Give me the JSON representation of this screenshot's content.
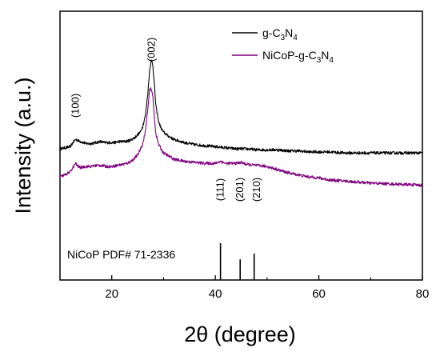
{
  "chart_data": {
    "type": "line",
    "title": "",
    "xlabel": "2θ (degree)",
    "ylabel": "Intensity (a.u.)",
    "xlim": [
      10,
      80
    ],
    "xticks": [
      "20",
      "40",
      "60",
      "80"
    ],
    "grid": false,
    "legend_position": "top-right",
    "legend": [
      {
        "name": "g-C",
        "sub1": "3",
        "mid": "N",
        "sub2": "4",
        "color": "#000000"
      },
      {
        "name": "NiCoP-g-C",
        "sub1": "3",
        "mid": "N",
        "sub2": "4",
        "color": "#800080"
      }
    ],
    "series": [
      {
        "name": "g-C3N4",
        "color": "#000000",
        "x": [
          10,
          11,
          12,
          12.5,
          13,
          13.5,
          14,
          15,
          16,
          17,
          17.7,
          18.5,
          19.5,
          20.5,
          21.5,
          22.5,
          23.5,
          24.5,
          25.5,
          26,
          26.5,
          27,
          27.3,
          27.6,
          27.9,
          28.2,
          28.5,
          29,
          29.5,
          30,
          31,
          32,
          34,
          36,
          38,
          40,
          42,
          44,
          46,
          48,
          50,
          52,
          54,
          56,
          58,
          60,
          62,
          65,
          70,
          75,
          80
        ],
        "y": [
          0.7,
          0.71,
          0.72,
          0.76,
          0.79,
          0.78,
          0.77,
          0.75,
          0.75,
          0.76,
          0.77,
          0.76,
          0.76,
          0.76,
          0.77,
          0.77,
          0.78,
          0.81,
          0.86,
          0.92,
          1.02,
          1.25,
          1.45,
          1.55,
          1.52,
          1.34,
          1.12,
          0.97,
          0.9,
          0.86,
          0.82,
          0.79,
          0.76,
          0.74,
          0.73,
          0.72,
          0.71,
          0.7,
          0.7,
          0.69,
          0.69,
          0.69,
          0.68,
          0.68,
          0.67,
          0.67,
          0.67,
          0.66,
          0.66,
          0.66,
          0.66
        ]
      },
      {
        "name": "NiCoP-g-C3N4",
        "color": "#800080",
        "x": [
          10,
          11,
          12,
          12.5,
          13,
          13.5,
          14,
          15,
          16,
          17,
          18,
          19,
          20,
          21,
          22,
          23,
          24,
          25,
          26,
          26.5,
          27,
          27.3,
          27.6,
          27.9,
          28.2,
          28.5,
          29,
          29.5,
          30,
          31,
          32,
          34,
          36,
          38,
          40,
          41,
          42,
          44,
          45,
          46,
          48,
          50,
          52,
          54,
          56,
          58,
          60,
          62,
          65,
          70,
          75,
          80
        ],
        "y": [
          0.43,
          0.45,
          0.48,
          0.52,
          0.56,
          0.53,
          0.52,
          0.53,
          0.53,
          0.54,
          0.54,
          0.53,
          0.53,
          0.54,
          0.55,
          0.56,
          0.59,
          0.64,
          0.75,
          0.87,
          1.1,
          1.26,
          1.28,
          1.22,
          1.02,
          0.85,
          0.75,
          0.7,
          0.66,
          0.63,
          0.6,
          0.58,
          0.57,
          0.56,
          0.56,
          0.58,
          0.56,
          0.56,
          0.57,
          0.55,
          0.54,
          0.53,
          0.5,
          0.47,
          0.45,
          0.43,
          0.42,
          0.4,
          0.39,
          0.37,
          0.36,
          0.35
        ]
      }
    ],
    "peak_labels": [
      {
        "label": "(100)",
        "x": 13
      },
      {
        "label": "(002)",
        "x": 27.7
      },
      {
        "label": "(111)",
        "x": 41
      },
      {
        "label": "(201)",
        "x": 44.8
      },
      {
        "label": "(210)",
        "x": 48
      }
    ],
    "reference": {
      "label": "NiCoP PDF# 71-2336",
      "lines": [
        {
          "x": 41.0,
          "intensity": 1.0
        },
        {
          "x": 44.8,
          "intensity": 0.56
        },
        {
          "x": 47.5,
          "intensity": 0.72
        }
      ]
    }
  }
}
